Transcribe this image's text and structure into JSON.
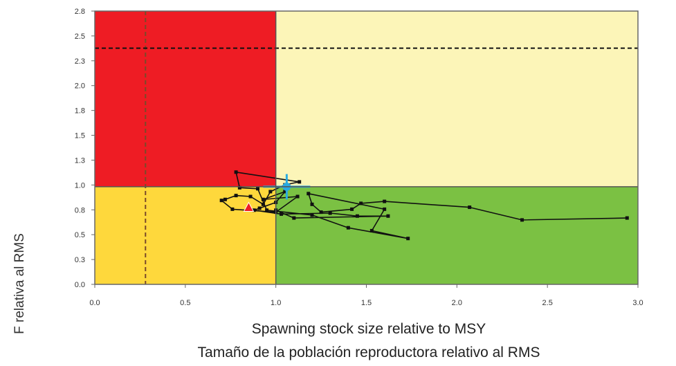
{
  "chart_data": {
    "type": "scatter",
    "title": "",
    "xlabel": "Spawning stock size relative to MSY",
    "xlabel2": "Tamaño de la población reproductora relativo al RMS",
    "ylabel": "F relativa al RMS",
    "xlim": [
      0,
      3.0
    ],
    "ylim": [
      0,
      2.8
    ],
    "xticks": [
      "0.0",
      "0.5",
      "1.0",
      "1.5",
      "2.0",
      "2.5",
      "3.0"
    ],
    "yticks": [
      "0.0",
      "0.3",
      "0.5",
      "0.8",
      "1.0",
      "1.3",
      "1.5",
      "1.8",
      "2.0",
      "2.3",
      "2.5",
      "2.8"
    ],
    "zones": [
      {
        "name": "overfished-overfishing",
        "x": [
          0,
          1
        ],
        "y": [
          1,
          2.8
        ],
        "color": "#ee1c24"
      },
      {
        "name": "overfishing",
        "x": [
          1,
          3
        ],
        "y": [
          1,
          2.8
        ],
        "color": "#fcf5b8"
      },
      {
        "name": "overfished",
        "x": [
          0,
          1
        ],
        "y": [
          0,
          1
        ],
        "color": "#fed83c"
      },
      {
        "name": "healthy",
        "x": [
          1,
          3
        ],
        "y": [
          0,
          1
        ],
        "color": "#7bc143"
      }
    ],
    "reference_lines": [
      {
        "orientation": "vertical",
        "value": 0.28,
        "style": "dashed",
        "color": "#7a4a2a"
      },
      {
        "orientation": "horizontal",
        "value": 2.42,
        "style": "dashed",
        "color": "#111111"
      }
    ],
    "trajectory": {
      "x": [
        2.94,
        2.36,
        2.07,
        1.6,
        1.47,
        1.42,
        1.25,
        1.2,
        1.18,
        1.6,
        1.53,
        1.73,
        1.4,
        1.2,
        0.95,
        0.9,
        0.8,
        0.78,
        1.13,
        1.05,
        0.97,
        0.93,
        0.86,
        0.78,
        0.72,
        0.7,
        0.76,
        1.0,
        1.12,
        0.93,
        1.05,
        1.0,
        0.91,
        0.88,
        1.03,
        1.3,
        1.45,
        1.62,
        1.1,
        1.0
      ],
      "y": [
        0.68,
        0.66,
        0.79,
        0.85,
        0.83,
        0.77,
        0.74,
        0.82,
        0.93,
        0.77,
        0.55,
        0.47,
        0.58,
        0.71,
        0.76,
        0.98,
        0.99,
        1.15,
        1.05,
        1.02,
        0.95,
        0.82,
        0.9,
        0.91,
        0.87,
        0.86,
        0.77,
        0.74,
        0.9,
        0.87,
        0.95,
        0.84,
        0.78,
        0.76,
        0.72,
        0.73,
        0.7,
        0.7,
        0.68,
        0.76
      ]
    },
    "current_estimate": {
      "x": 1.06,
      "y": 1.0,
      "x_err": [
        0.93,
        1.19
      ],
      "y_err": [
        0.87,
        1.13
      ],
      "color": "#29abe2"
    },
    "reference_marker": {
      "x": 0.85,
      "y": 0.79,
      "shape": "triangle",
      "color": "#ee1c24"
    },
    "grid": false,
    "legend": "none"
  }
}
